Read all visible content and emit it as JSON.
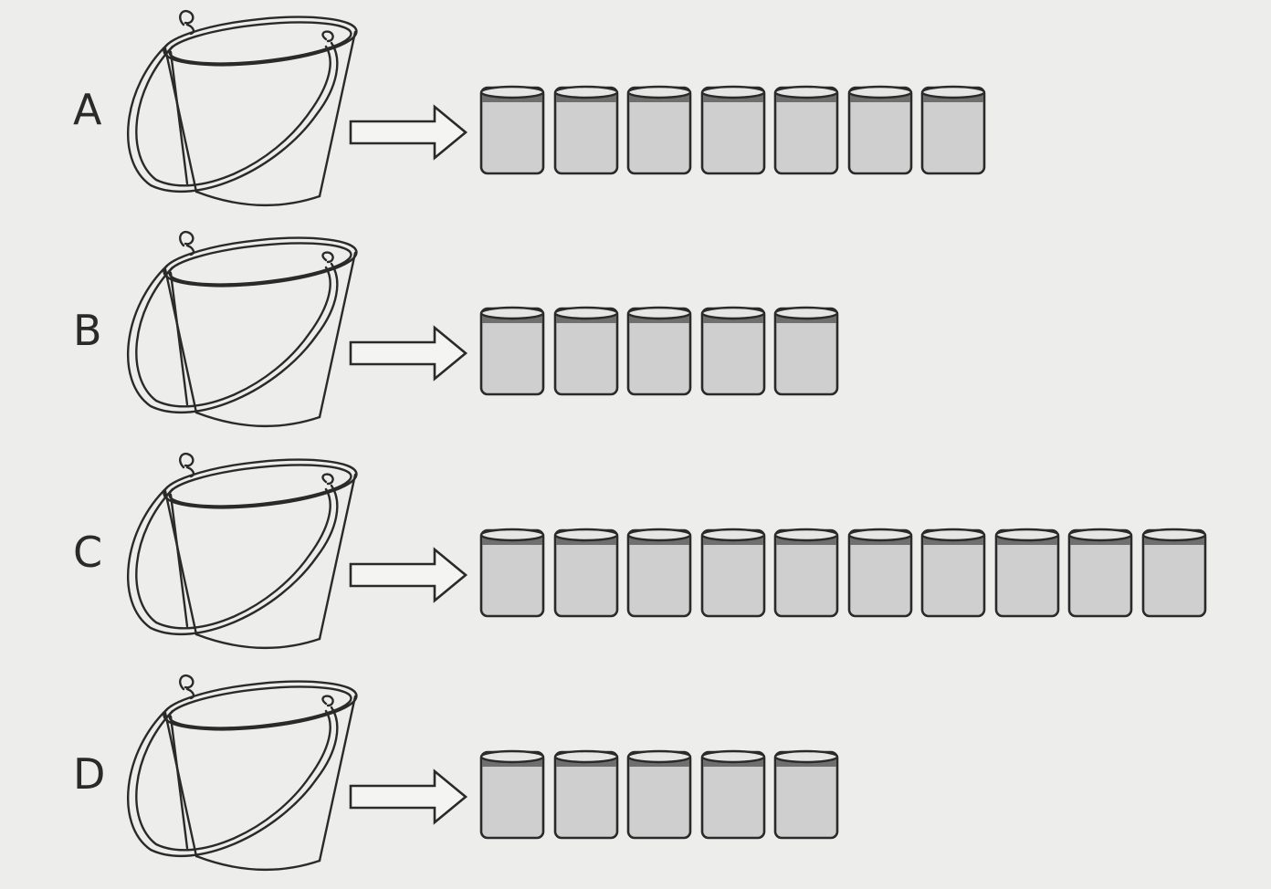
{
  "rows": [
    {
      "label": "A",
      "cups": 7
    },
    {
      "label": "B",
      "cups": 5
    },
    {
      "label": "C",
      "cups": 10
    },
    {
      "label": "D",
      "cups": 5
    }
  ],
  "colors": {
    "background": "#ededeb",
    "outline": "#2a2a2a",
    "water": "#cfcfcf",
    "water_surface": "#6f6f6f"
  }
}
